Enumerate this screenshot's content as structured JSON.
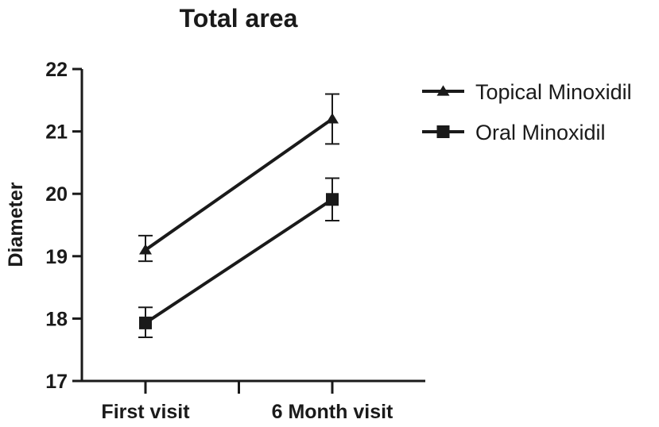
{
  "chart_data": {
    "type": "line",
    "title": "Total area",
    "xlabel": "",
    "ylabel": "Diameter",
    "categories": [
      "First visit",
      "6 Month visit"
    ],
    "ylim": [
      17,
      22
    ],
    "yticks": [
      17,
      18,
      19,
      20,
      21,
      22
    ],
    "grid": false,
    "legend_position": "top-right",
    "series": [
      {
        "name": "Topical Minoxidil",
        "marker": "triangle",
        "color": "#1a1a1a",
        "values": [
          19.1,
          21.2
        ],
        "error_low": [
          18.92,
          20.8
        ],
        "error_high": [
          19.33,
          21.6
        ]
      },
      {
        "name": "Oral Minoxidil",
        "marker": "square",
        "color": "#1a1a1a",
        "values": [
          17.93,
          19.91
        ],
        "error_low": [
          17.7,
          19.57
        ],
        "error_high": [
          18.18,
          20.25
        ]
      }
    ]
  }
}
